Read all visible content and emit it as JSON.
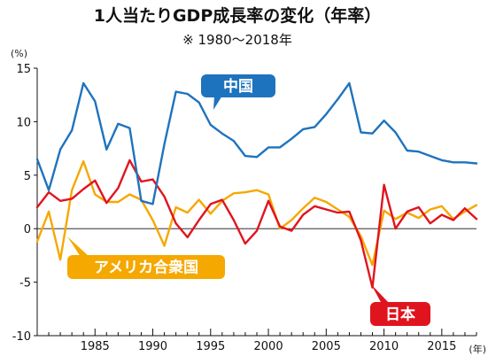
{
  "chart_data": {
    "type": "line",
    "title": "1人当たりGDP成長率の変化（年率）",
    "subtitle": "※ 1980～2018年",
    "y_unit": "(%)",
    "x_unit": "(年)",
    "ylim": [
      -10,
      15
    ],
    "xlim": [
      1980,
      2018
    ],
    "yticks": [
      15,
      10,
      5,
      0,
      -5,
      -10
    ],
    "ytick_labels": [
      "15",
      "10",
      "5",
      "0",
      "-5",
      "-10"
    ],
    "xticks": [
      1985,
      1990,
      1995,
      2000,
      2005,
      2010,
      2015
    ],
    "xtick_labels": [
      "1985",
      "1990",
      "1995",
      "2000",
      "2005",
      "2010",
      "2015"
    ],
    "grid": false,
    "series": [
      {
        "name": "中国",
        "color": "#1e73be",
        "x": [
          1980,
          1981,
          1982,
          1983,
          1984,
          1985,
          1986,
          1987,
          1988,
          1989,
          1990,
          1991,
          1992,
          1993,
          1994,
          1995,
          1996,
          1997,
          1998,
          1999,
          2000,
          2001,
          2002,
          2003,
          2004,
          2005,
          2006,
          2007,
          2008,
          2009,
          2010,
          2011,
          2012,
          2013,
          2014,
          2015,
          2016,
          2017,
          2018
        ],
        "values": [
          6.5,
          3.6,
          7.4,
          9.2,
          13.6,
          11.9,
          7.4,
          9.8,
          9.4,
          2.6,
          2.3,
          7.9,
          12.8,
          12.6,
          11.8,
          9.7,
          8.9,
          8.2,
          6.8,
          6.7,
          7.6,
          7.6,
          8.4,
          9.3,
          9.5,
          10.7,
          12.1,
          13.6,
          9.0,
          8.9,
          10.1,
          9.0,
          7.3,
          7.2,
          6.8,
          6.4,
          6.2,
          6.2,
          6.1
        ]
      },
      {
        "name": "アメリカ合衆国",
        "color": "#f5a800",
        "x": [
          1980,
          1981,
          1982,
          1983,
          1984,
          1985,
          1986,
          1987,
          1988,
          1989,
          1990,
          1991,
          1992,
          1993,
          1994,
          1995,
          1996,
          1997,
          1998,
          1999,
          2000,
          2001,
          2002,
          2003,
          2004,
          2005,
          2006,
          2007,
          2008,
          2009,
          2010,
          2011,
          2012,
          2013,
          2014,
          2015,
          2016,
          2017,
          2018
        ],
        "values": [
          -1.2,
          1.6,
          -2.9,
          3.6,
          6.3,
          3.2,
          2.5,
          2.5,
          3.2,
          2.7,
          0.8,
          -1.6,
          2.0,
          1.5,
          2.7,
          1.4,
          2.6,
          3.3,
          3.4,
          3.6,
          3.2,
          0.0,
          0.8,
          1.9,
          2.9,
          2.5,
          1.8,
          1.1,
          -0.7,
          -3.4,
          1.7,
          0.9,
          1.5,
          1.0,
          1.8,
          2.1,
          0.9,
          1.6,
          2.2
        ]
      },
      {
        "name": "日本",
        "color": "#e0141e",
        "x": [
          1980,
          1981,
          1982,
          1983,
          1984,
          1985,
          1986,
          1987,
          1988,
          1989,
          1990,
          1991,
          1992,
          1993,
          1994,
          1995,
          1996,
          1997,
          1998,
          1999,
          2000,
          2001,
          2002,
          2003,
          2004,
          2005,
          2006,
          2007,
          2008,
          2009,
          2010,
          2011,
          2012,
          2013,
          2014,
          2015,
          2016,
          2017,
          2018
        ],
        "values": [
          2.0,
          3.4,
          2.6,
          2.8,
          3.7,
          4.5,
          2.4,
          3.8,
          6.4,
          4.4,
          4.6,
          3.0,
          0.5,
          -0.8,
          0.8,
          2.3,
          2.7,
          0.8,
          -1.4,
          -0.2,
          2.6,
          0.2,
          -0.2,
          1.3,
          2.1,
          1.8,
          1.5,
          1.6,
          -1.1,
          -5.5,
          4.1,
          0.0,
          1.6,
          2.0,
          0.5,
          1.3,
          0.8,
          1.9,
          0.9
        ]
      }
    ],
    "labels": [
      {
        "series": "中国",
        "text": "中国",
        "bg": "#1e73be"
      },
      {
        "series": "アメリカ合衆国",
        "text": "アメリカ合衆国",
        "bg": "#f5a800"
      },
      {
        "series": "日本",
        "text": "日本",
        "bg": "#e0141e"
      }
    ]
  }
}
